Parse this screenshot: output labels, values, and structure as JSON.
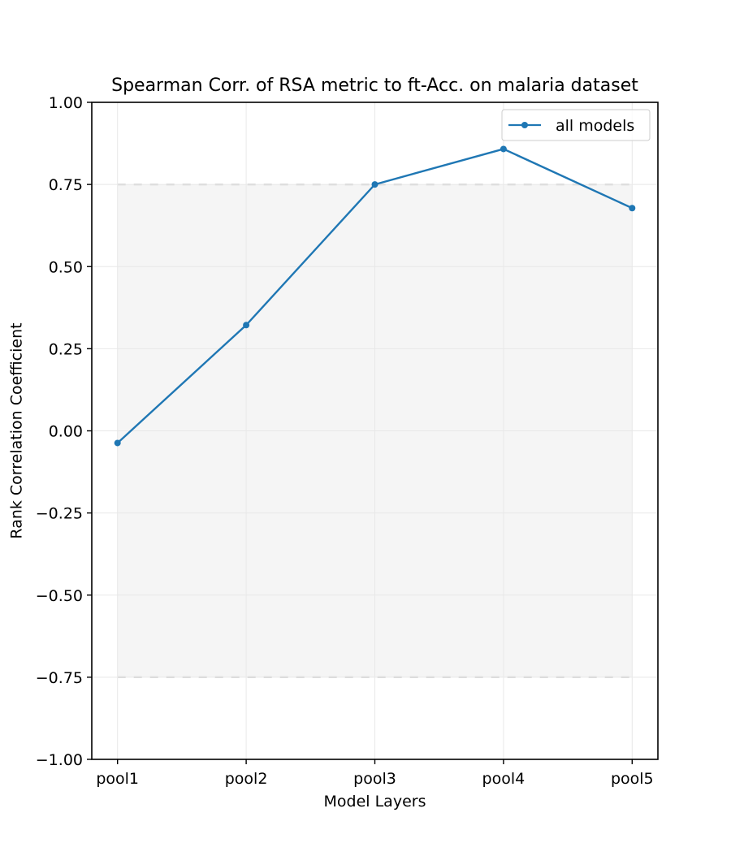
{
  "chart_data": {
    "type": "line",
    "title": "Spearman Corr. of RSA metric to ft-Acc. on malaria dataset",
    "xlabel": "Model Layers",
    "ylabel": "Rank Correlation Coefficient",
    "categories": [
      "pool1",
      "pool2",
      "pool3",
      "pool4",
      "pool5"
    ],
    "series": [
      {
        "name": "all models",
        "values": [
          -0.037,
          0.322,
          0.75,
          0.858,
          0.678
        ],
        "color": "#1f77b4",
        "marker": "circle"
      }
    ],
    "ylim": [
      -1.0,
      1.0
    ],
    "yticks": [
      -1.0,
      -0.75,
      -0.5,
      -0.25,
      0.0,
      0.25,
      0.5,
      0.75,
      1.0
    ],
    "ytick_labels": [
      "−1.00",
      "−0.75",
      "−0.50",
      "−0.25",
      "0.00",
      "0.25",
      "0.50",
      "0.75",
      "1.00"
    ],
    "band": {
      "lower": -0.75,
      "upper": 0.75,
      "fill_color": "#f5f5f5",
      "edge_color": "#d3d3d3",
      "edge_style": "dashed"
    },
    "grid": true,
    "grid_color": "#e8e8e8",
    "legend_position": "top-right"
  }
}
